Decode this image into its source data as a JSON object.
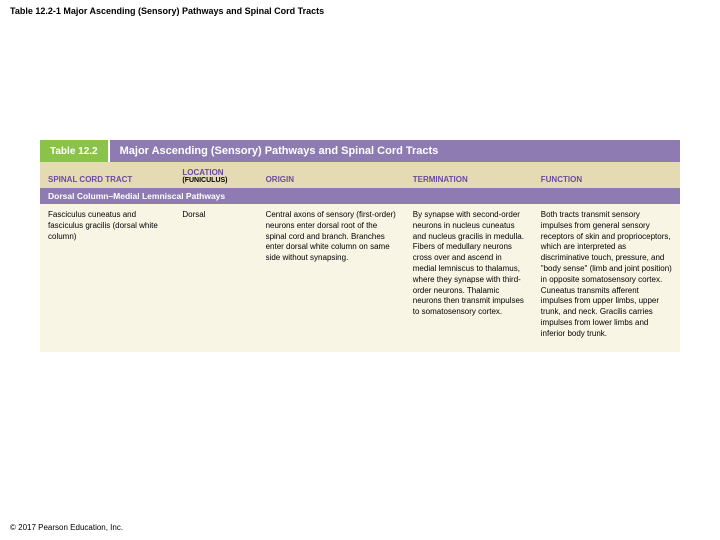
{
  "caption": "Table 12.2-1 Major Ascending (Sensory) Pathways and Spinal Cord Tracts",
  "copyright": "© 2017 Pearson Education, Inc.",
  "colors": {
    "tab_bg": "#8bc34a",
    "title_bg": "#8d7bb2",
    "header_bg": "#e4dbb5",
    "header_text": "#6a4ba0",
    "section_bg": "#8d7bb2",
    "row_bg": "#f9f5e5"
  },
  "title_tab": "Table 12.2",
  "title_main": "Major Ascending (Sensory) Pathways and Spinal Cord Tracts",
  "columns": {
    "spinal": "SPINAL CORD TRACT",
    "loc_top": "LOCATION",
    "loc_sub": "(FUNICULUS)",
    "origin": "ORIGIN",
    "termination": "TERMINATION",
    "function": "FUNCTION"
  },
  "section_header": "Dorsal Column–Medial Lemniscal Pathways",
  "row": {
    "tract": "Fasciculus cuneatus and fasciculus gracilis (dorsal white column)",
    "location": "Dorsal",
    "origin": "Central axons of sensory (first-order) neurons enter dorsal root of the spinal cord and branch. Branches enter dorsal white column on same side without synapsing.",
    "termination": "By synapse with second-order neurons in nucleus cuneatus and nucleus gracilis in medulla. Fibers of medullary neurons cross over and ascend in medial lemniscus to thalamus, where they synapse with third-order neurons. Thalamic neurons then transmit impulses to somatosensory cortex.",
    "function": "Both tracts transmit sensory impulses from general sensory receptors of skin and proprioceptors, which are interpreted as discriminative touch, pressure, and \"body sense\" (limb and joint position) in opposite somatosensory cortex. Cuneatus transmits afferent impulses from upper limbs, upper trunk, and neck. Gracilis carries impulses from lower limbs and inferior body trunk."
  }
}
